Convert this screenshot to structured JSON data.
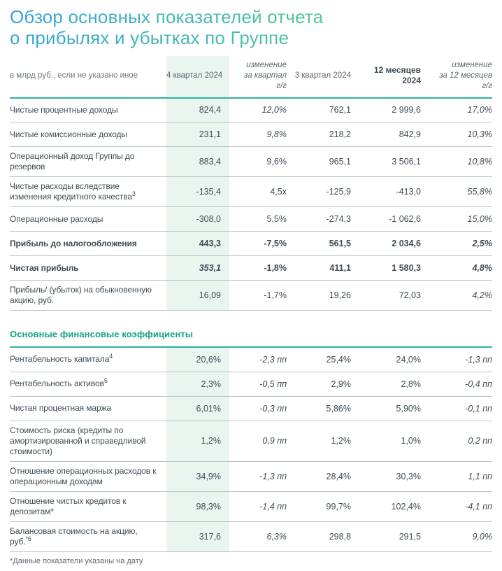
{
  "title": {
    "line1": "Обзор основных показателей отчета",
    "line2": "о прибылях и убытках по Группе"
  },
  "colors": {
    "accent_green": "#12a287",
    "header_line_green": "#2cb49b",
    "row_line_gray": "#b9c3cc",
    "highlight_column_bg": "#eaf5f0",
    "text_dark": "#3f4b54",
    "title_gradient_from": "#35a3d8",
    "title_gradient_to": "#74d98f"
  },
  "table1": {
    "unit_label": "в млрд руб., если не указано иное",
    "columns": [
      {
        "label": "4 квартал 2024",
        "highlight": true
      },
      {
        "label": "изменение\nза квартал\nг/г",
        "italic": true
      },
      {
        "label": "3 квартал 2024"
      },
      {
        "label": "12 месяцев\n2024",
        "bold": true
      },
      {
        "label": "изменение\nза 12 месяцев\nг/г",
        "italic": true
      }
    ],
    "rows": [
      {
        "label": "Чистые процентные доходы",
        "cells": [
          {
            "t": "824,4"
          },
          {
            "t": "12,0%",
            "i": true
          },
          {
            "t": "762,1"
          },
          {
            "t": "2 999,6"
          },
          {
            "t": "17,0%",
            "i": true
          }
        ]
      },
      {
        "label": "Чистые комиссионные доходы",
        "cells": [
          {
            "t": "231,1"
          },
          {
            "t": "9,8%",
            "i": true
          },
          {
            "t": "218,2"
          },
          {
            "t": "842,9"
          },
          {
            "t": "10,3%",
            "i": true
          }
        ]
      },
      {
        "label": "Операционный доход Группы до резервов",
        "cells": [
          {
            "t": "883,4"
          },
          {
            "t": "9,6%"
          },
          {
            "t": "965,1"
          },
          {
            "t": "3 506,1"
          },
          {
            "t": "10,8%",
            "i": true
          }
        ]
      },
      {
        "label": "Чистые расходы вследствие изменения кредитного качества",
        "sup": "3",
        "cells": [
          {
            "t": "-135,4"
          },
          {
            "t": "4,5x"
          },
          {
            "t": "-125,9"
          },
          {
            "t": "-413,0"
          },
          {
            "t": "55,8%",
            "i": true
          }
        ]
      },
      {
        "label": "Операционные расходы",
        "cells": [
          {
            "t": "-308,0"
          },
          {
            "t": "5,5%"
          },
          {
            "t": "-274,3"
          },
          {
            "t": "-1 062,6"
          },
          {
            "t": "15,0%",
            "i": true
          }
        ]
      },
      {
        "label": "Прибыль до налогообложения",
        "bold": true,
        "cells": [
          {
            "t": "443,3"
          },
          {
            "t": "-7,5%"
          },
          {
            "t": "561,5"
          },
          {
            "t": "2 034,6"
          },
          {
            "t": "2,5%",
            "i": true
          }
        ]
      },
      {
        "label": "Чистая прибыль",
        "bold": true,
        "cells": [
          {
            "t": "353,1",
            "i": true
          },
          {
            "t": "-1,8%"
          },
          {
            "t": "411,1"
          },
          {
            "t": "1 580,3"
          },
          {
            "t": "4,8%",
            "i": true
          }
        ]
      },
      {
        "label": "Прибыль/ (убыток) на обыкновенную акцию, руб.",
        "cells": [
          {
            "t": "16,09"
          },
          {
            "t": "-1,7%"
          },
          {
            "t": "19,26"
          },
          {
            "t": "72,03"
          },
          {
            "t": "4,2%",
            "i": true
          }
        ]
      }
    ]
  },
  "section2": {
    "heading": "Основные финансовые коэффициенты"
  },
  "table2": {
    "rows": [
      {
        "label": "Рентабельность капитала",
        "sup": "4",
        "cells": [
          {
            "t": "20,6%"
          },
          {
            "t": "-2,3 пп",
            "i": true
          },
          {
            "t": "25,4%"
          },
          {
            "t": "24,0%"
          },
          {
            "t": "-1,3 пп",
            "i": true
          }
        ]
      },
      {
        "label": "Рентабельность активов",
        "sup": "5",
        "cells": [
          {
            "t": "2,3%"
          },
          {
            "t": "-0,5 пп",
            "i": true
          },
          {
            "t": "2,9%"
          },
          {
            "t": "2,8%"
          },
          {
            "t": "-0,4 пп",
            "i": true
          }
        ]
      },
      {
        "label": "Чистая процентная маржа",
        "cells": [
          {
            "t": "6,01%"
          },
          {
            "t": "-0,3 пп",
            "i": true
          },
          {
            "t": "5,86%"
          },
          {
            "t": "5,90%"
          },
          {
            "t": "-0,1 пп",
            "i": true
          }
        ]
      },
      {
        "label": "Стоимость риска (кредиты по амортизированной и справедливой стоимости)",
        "cells": [
          {
            "t": "1,2%"
          },
          {
            "t": "0,9 пп",
            "i": true
          },
          {
            "t": "1,2%"
          },
          {
            "t": "1,0%"
          },
          {
            "t": "0,2 пп",
            "i": true
          }
        ]
      },
      {
        "label": "Отношение операционных расходов к операционным доходам",
        "cells": [
          {
            "t": "34,9%"
          },
          {
            "t": "-1,3 пп",
            "i": true
          },
          {
            "t": "28,4%"
          },
          {
            "t": "30,3%"
          },
          {
            "t": "1,1 пп",
            "i": true
          }
        ]
      },
      {
        "label": "Отношение чистых кредитов к депозитам*",
        "cells": [
          {
            "t": "98,3%"
          },
          {
            "t": "-1,4 пп",
            "i": true
          },
          {
            "t": "99,7%"
          },
          {
            "t": "102,4%"
          },
          {
            "t": "-4,1 пп",
            "i": true
          }
        ]
      },
      {
        "label": "Балансовая стоимость на акцию, руб.",
        "sup": "*6",
        "cells": [
          {
            "t": "317,6"
          },
          {
            "t": "6,3%",
            "i": true
          },
          {
            "t": "298,8"
          },
          {
            "t": "291,5"
          },
          {
            "t": "9,0%",
            "i": true
          }
        ]
      }
    ]
  },
  "footnote": "*Данные показатели указаны на дату"
}
